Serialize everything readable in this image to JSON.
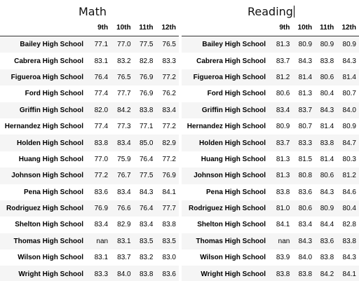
{
  "math": {
    "title": "Math",
    "columns": [
      "9th",
      "10th",
      "11th",
      "12th"
    ],
    "rows": [
      {
        "school": "Bailey High School",
        "values": [
          "77.1",
          "77.0",
          "77.5",
          "76.5"
        ]
      },
      {
        "school": "Cabrera High School",
        "values": [
          "83.1",
          "83.2",
          "82.8",
          "83.3"
        ]
      },
      {
        "school": "Figueroa High School",
        "values": [
          "76.4",
          "76.5",
          "76.9",
          "77.2"
        ]
      },
      {
        "school": "Ford High School",
        "values": [
          "77.4",
          "77.7",
          "76.9",
          "76.2"
        ]
      },
      {
        "school": "Griffin High School",
        "values": [
          "82.0",
          "84.2",
          "83.8",
          "83.4"
        ]
      },
      {
        "school": "Hernandez High School",
        "values": [
          "77.4",
          "77.3",
          "77.1",
          "77.2"
        ]
      },
      {
        "school": "Holden High School",
        "values": [
          "83.8",
          "83.4",
          "85.0",
          "82.9"
        ]
      },
      {
        "school": "Huang High School",
        "values": [
          "77.0",
          "75.9",
          "76.4",
          "77.2"
        ]
      },
      {
        "school": "Johnson High School",
        "values": [
          "77.2",
          "76.7",
          "77.5",
          "76.9"
        ]
      },
      {
        "school": "Pena High School",
        "values": [
          "83.6",
          "83.4",
          "84.3",
          "84.1"
        ]
      },
      {
        "school": "Rodriguez High School",
        "values": [
          "76.9",
          "76.6",
          "76.4",
          "77.7"
        ]
      },
      {
        "school": "Shelton High School",
        "values": [
          "83.4",
          "82.9",
          "83.4",
          "83.8"
        ]
      },
      {
        "school": "Thomas High School",
        "values": [
          "nan",
          "83.1",
          "83.5",
          "83.5"
        ]
      },
      {
        "school": "Wilson High School",
        "values": [
          "83.1",
          "83.7",
          "83.2",
          "83.0"
        ]
      },
      {
        "school": "Wright High School",
        "values": [
          "83.3",
          "84.0",
          "83.8",
          "83.6"
        ]
      }
    ]
  },
  "reading": {
    "title": "Reading",
    "columns": [
      "9th",
      "10th",
      "11th",
      "12th"
    ],
    "rows": [
      {
        "school": "Bailey High School",
        "values": [
          "81.3",
          "80.9",
          "80.9",
          "80.9"
        ]
      },
      {
        "school": "Cabrera High School",
        "values": [
          "83.7",
          "84.3",
          "83.8",
          "84.3"
        ]
      },
      {
        "school": "Figueroa High School",
        "values": [
          "81.2",
          "81.4",
          "80.6",
          "81.4"
        ]
      },
      {
        "school": "Ford High School",
        "values": [
          "80.6",
          "81.3",
          "80.4",
          "80.7"
        ]
      },
      {
        "school": "Griffin High School",
        "values": [
          "83.4",
          "83.7",
          "84.3",
          "84.0"
        ]
      },
      {
        "school": "Hernandez High School",
        "values": [
          "80.9",
          "80.7",
          "81.4",
          "80.9"
        ]
      },
      {
        "school": "Holden High School",
        "values": [
          "83.7",
          "83.3",
          "83.8",
          "84.7"
        ]
      },
      {
        "school": "Huang High School",
        "values": [
          "81.3",
          "81.5",
          "81.4",
          "80.3"
        ]
      },
      {
        "school": "Johnson High School",
        "values": [
          "81.3",
          "80.8",
          "80.6",
          "81.2"
        ]
      },
      {
        "school": "Pena High School",
        "values": [
          "83.8",
          "83.6",
          "84.3",
          "84.6"
        ]
      },
      {
        "school": "Rodriguez High School",
        "values": [
          "81.0",
          "80.6",
          "80.9",
          "80.4"
        ]
      },
      {
        "school": "Shelton High School",
        "values": [
          "84.1",
          "83.4",
          "84.4",
          "82.8"
        ]
      },
      {
        "school": "Thomas High School",
        "values": [
          "nan",
          "84.3",
          "83.6",
          "83.8"
        ]
      },
      {
        "school": "Wilson High School",
        "values": [
          "83.9",
          "84.0",
          "83.8",
          "84.3"
        ]
      },
      {
        "school": "Wright High School",
        "values": [
          "83.8",
          "83.8",
          "84.2",
          "84.1"
        ]
      }
    ]
  }
}
